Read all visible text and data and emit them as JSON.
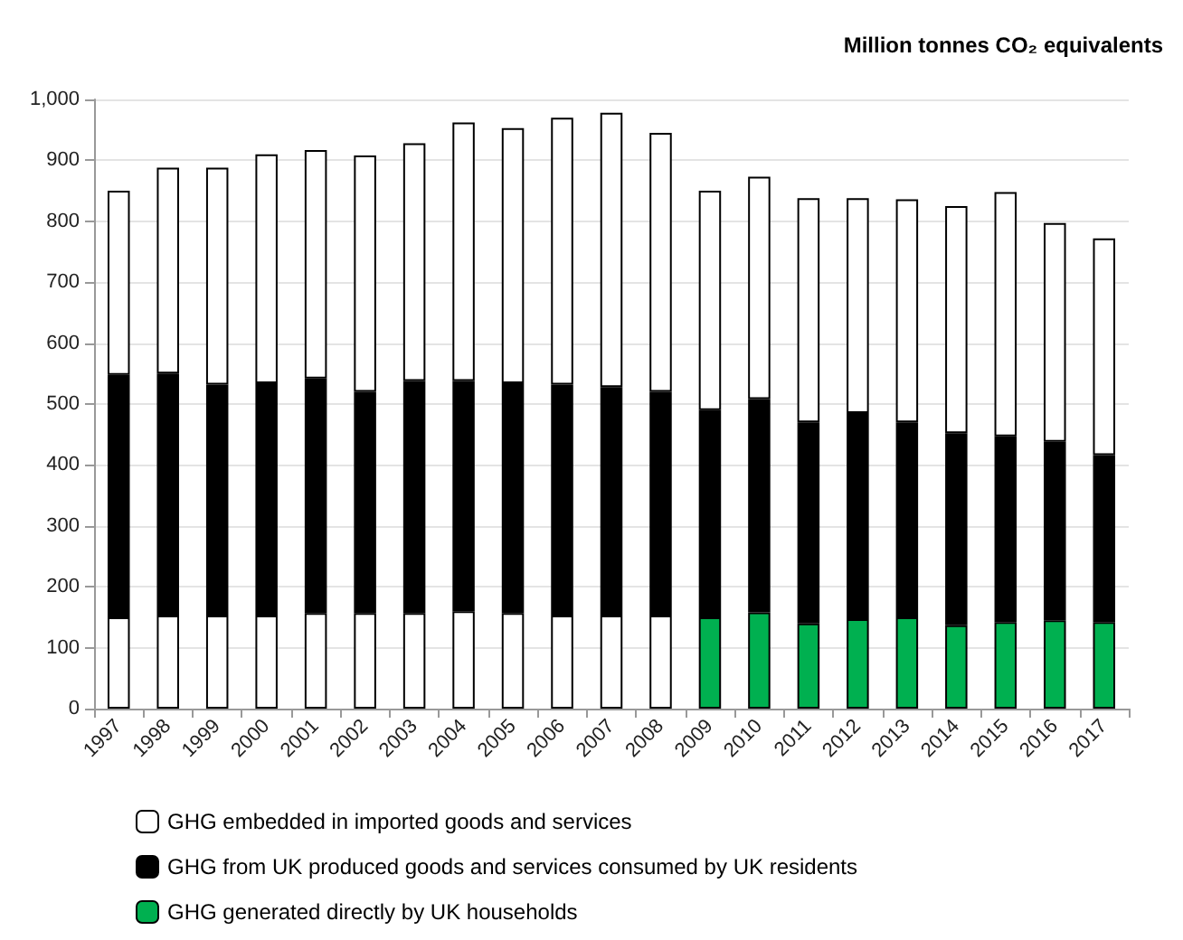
{
  "chart_data": {
    "type": "bar",
    "stacked": true,
    "ylabel": "Million tonnes CO₂ equivalents",
    "categories": [
      "1997",
      "1998",
      "1999",
      "2000",
      "2001",
      "2002",
      "2003",
      "2004",
      "2005",
      "2006",
      "2007",
      "2008",
      "2009",
      "2010",
      "2011",
      "2012",
      "2013",
      "2014",
      "2015",
      "2016",
      "2017"
    ],
    "series": [
      {
        "name": "GHG generated directly by UK households",
        "color": "#00b050",
        "colors": [
          "#ffffff",
          "#ffffff",
          "#ffffff",
          "#ffffff",
          "#ffffff",
          "#ffffff",
          "#ffffff",
          "#ffffff",
          "#ffffff",
          "#ffffff",
          "#ffffff",
          "#ffffff",
          "#00b050",
          "#00b050",
          "#00b050",
          "#00b050",
          "#00b050",
          "#00b050",
          "#00b050",
          "#00b050",
          "#00b050"
        ],
        "values": [
          150,
          153,
          153,
          153,
          157,
          157,
          157,
          160,
          157,
          153,
          153,
          153,
          150,
          158,
          140,
          147,
          150,
          137,
          142,
          145,
          142
        ]
      },
      {
        "name": "GHG from UK produced goods and services consumed by UK residents",
        "color": "#000000",
        "values": [
          398,
          397,
          379,
          381,
          385,
          363,
          381,
          378,
          377,
          379,
          375,
          367,
          340,
          350,
          330,
          338,
          320,
          315,
          305,
          293,
          274
        ]
      },
      {
        "name": "GHG embedded in imported goods and services",
        "color": "#ffffff",
        "values": [
          302,
          338,
          356,
          376,
          375,
          388,
          390,
          424,
          419,
          438,
          450,
          425,
          360,
          365,
          368,
          353,
          366,
          373,
          401,
          359,
          356
        ]
      }
    ],
    "ylim": [
      0,
      1000
    ],
    "yticks": [
      {
        "value": 0,
        "label": "0"
      },
      {
        "value": 100,
        "label": "100"
      },
      {
        "value": 200,
        "label": "200"
      },
      {
        "value": 300,
        "label": "300"
      },
      {
        "value": 400,
        "label": "400"
      },
      {
        "value": 500,
        "label": "500"
      },
      {
        "value": 600,
        "label": "600"
      },
      {
        "value": 700,
        "label": "700"
      },
      {
        "value": 800,
        "label": "800"
      },
      {
        "value": 900,
        "label": "900"
      },
      {
        "value": 1000,
        "label": "1,000"
      }
    ],
    "grid": "y",
    "legend": "bottom"
  }
}
